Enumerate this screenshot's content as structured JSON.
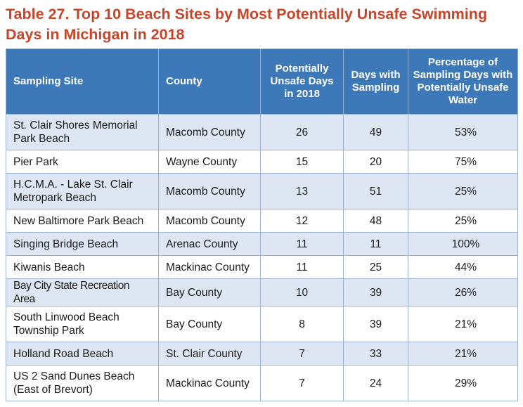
{
  "title": "Table 27. Top 10 Beach Sites by Most Potentially Unsafe Swimming Days in Michigan in 2018",
  "headers": {
    "site": "Sampling Site",
    "county": "County",
    "unsafe_days": "Potentially Unsafe Days in 2018",
    "days_sampling": "Days with Sampling",
    "percentage": "Percentage of Sampling Days with Potentially Unsafe Water"
  },
  "rows": [
    {
      "site": "St. Clair Shores Memorial Park Beach",
      "county": "Macomb County",
      "unsafe_days": "26",
      "days_sampling": "49",
      "percentage": "53%"
    },
    {
      "site": "Pier Park",
      "county": "Wayne County",
      "unsafe_days": "15",
      "days_sampling": "20",
      "percentage": "75%"
    },
    {
      "site": "H.C.M.A. - Lake St. Clair Metropark Beach",
      "county": "Macomb County",
      "unsafe_days": "13",
      "days_sampling": "51",
      "percentage": "25%"
    },
    {
      "site": "New Baltimore Park Beach",
      "county": "Macomb County",
      "unsafe_days": "12",
      "days_sampling": "48",
      "percentage": "25%"
    },
    {
      "site": "Singing Bridge Beach",
      "county": "Arenac County",
      "unsafe_days": "11",
      "days_sampling": "11",
      "percentage": "100%"
    },
    {
      "site": "Kiwanis Beach",
      "county": "Mackinac County",
      "unsafe_days": "11",
      "days_sampling": "25",
      "percentage": "44%"
    },
    {
      "site": "Bay City State Recreation Area",
      "county": "Bay County",
      "unsafe_days": "10",
      "days_sampling": "39",
      "percentage": "26%"
    },
    {
      "site": "South Linwood Beach Township Park",
      "county": "Bay County",
      "unsafe_days": "8",
      "days_sampling": "39",
      "percentage": "21%"
    },
    {
      "site": "Holland Road Beach",
      "county": "St. Clair County",
      "unsafe_days": "7",
      "days_sampling": "33",
      "percentage": "21%"
    },
    {
      "site": "US 2 Sand Dunes Beach (East of Brevort)",
      "county": "Mackinac County",
      "unsafe_days": "7",
      "days_sampling": "24",
      "percentage": "29%"
    }
  ]
}
